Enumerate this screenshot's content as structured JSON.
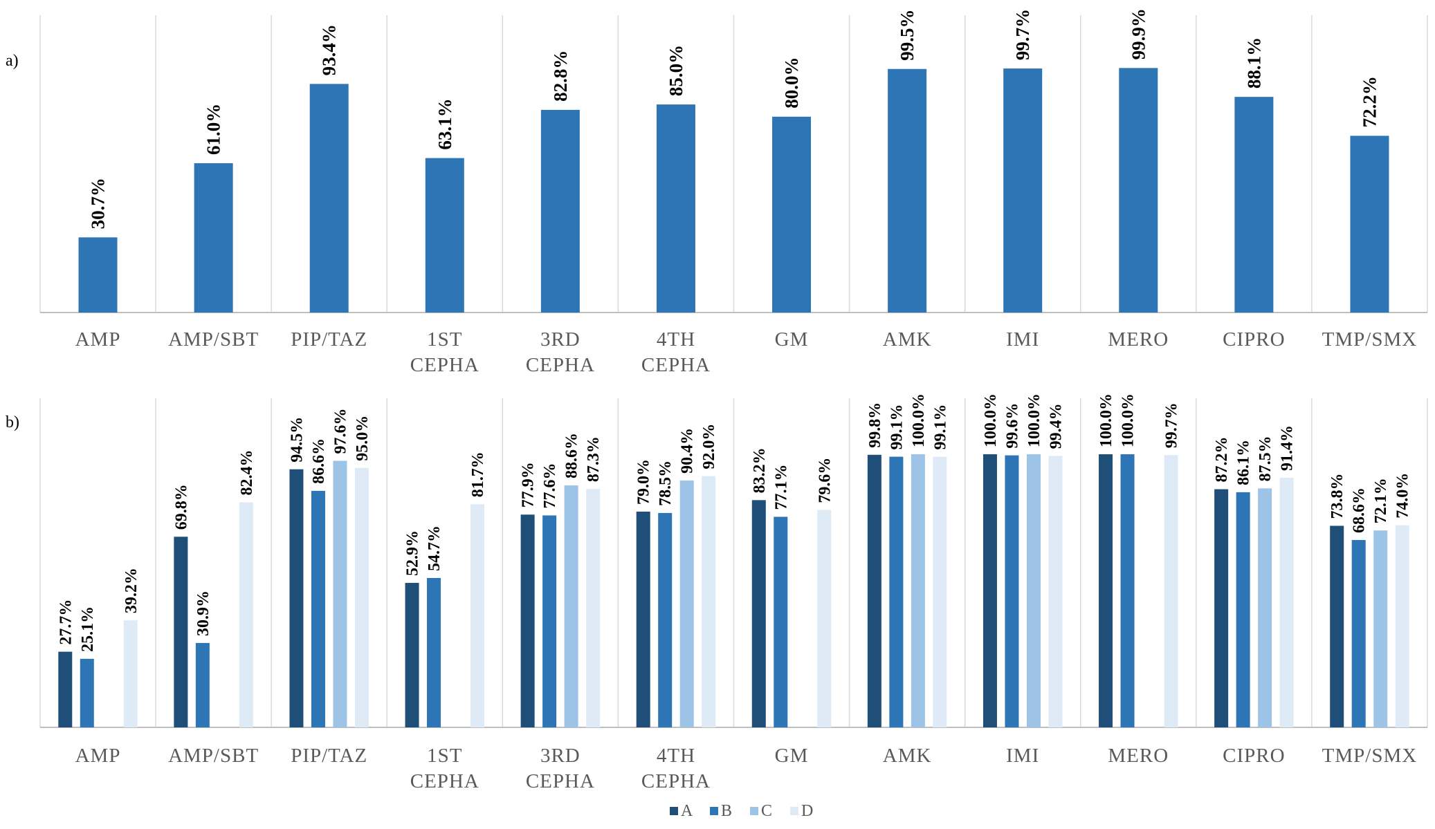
{
  "chart_data": [
    {
      "type": "bar",
      "panel": "a)",
      "categories": [
        "AMP",
        "AMP/SBT",
        "PIP/TAZ",
        "1ST CEPHA",
        "3RD CEPHA",
        "4TH CEPHA",
        "GM",
        "AMK",
        "IMI",
        "MERO",
        "CIPRO",
        "TMP/SMX"
      ],
      "values": [
        30.7,
        61.0,
        93.4,
        63.1,
        82.8,
        85.0,
        80.0,
        99.5,
        99.7,
        99.9,
        88.1,
        72.2
      ],
      "labels": [
        "30.7%",
        "61.0%",
        "93.4%",
        "63.1%",
        "82.8%",
        "85.0%",
        "80.0%",
        "99.5%",
        "99.7%",
        "99.9%",
        "88.1%",
        "72.2%"
      ],
      "ylim": [
        0,
        100
      ],
      "color": "#2e75b6",
      "grid": false
    },
    {
      "type": "bar",
      "panel": "b)",
      "categories": [
        "AMP",
        "AMP/SBT",
        "PIP/TAZ",
        "1ST CEPHA",
        "3RD CEPHA",
        "4TH CEPHA",
        "GM",
        "AMK",
        "IMI",
        "MERO",
        "CIPRO",
        "TMP/SMX"
      ],
      "series": [
        {
          "name": "A",
          "color": "#1f4e79",
          "values": [
            27.7,
            69.8,
            94.5,
            52.9,
            77.9,
            79.0,
            83.2,
            99.8,
            100.0,
            100.0,
            87.2,
            73.8
          ],
          "labels": [
            "27.7%",
            "69.8%",
            "94.5%",
            "52.9%",
            "77.9%",
            "79.0%",
            "83.2%",
            "99.8%",
            "100.0%",
            "100.0%",
            "87.2%",
            "73.8%"
          ]
        },
        {
          "name": "B",
          "color": "#2e75b6",
          "values": [
            25.1,
            30.9,
            86.6,
            54.7,
            77.6,
            78.5,
            77.1,
            99.1,
            99.6,
            100.0,
            86.1,
            68.6
          ],
          "labels": [
            "25.1%",
            "30.9%",
            "86.6%",
            "54.7%",
            "77.6%",
            "78.5%",
            "77.1%",
            "99.1%",
            "99.6%",
            "100.0%",
            "86.1%",
            "68.6%"
          ]
        },
        {
          "name": "C",
          "color": "#9dc3e6",
          "values": [
            null,
            null,
            97.6,
            null,
            88.6,
            90.4,
            null,
            100.0,
            100.0,
            null,
            87.5,
            72.1
          ],
          "labels": [
            null,
            null,
            "97.6%",
            null,
            "88.6%",
            "90.4%",
            null,
            "100.0%",
            "100.0%",
            null,
            "87.5%",
            "72.1%"
          ]
        },
        {
          "name": "D",
          "color": "#deebf7",
          "values": [
            39.2,
            82.4,
            95.0,
            81.7,
            87.3,
            92.0,
            79.6,
            99.1,
            99.4,
            99.7,
            91.4,
            74.0
          ],
          "labels": [
            "39.2%",
            "82.4%",
            "95.0%",
            "81.7%",
            "87.3%",
            "92.0%",
            "79.6%",
            "99.1%",
            "99.4%",
            "99.7%",
            "91.4%",
            "74.0%"
          ]
        }
      ],
      "ylim": [
        0,
        100
      ],
      "legend": "bottom-center",
      "grid": false
    }
  ]
}
